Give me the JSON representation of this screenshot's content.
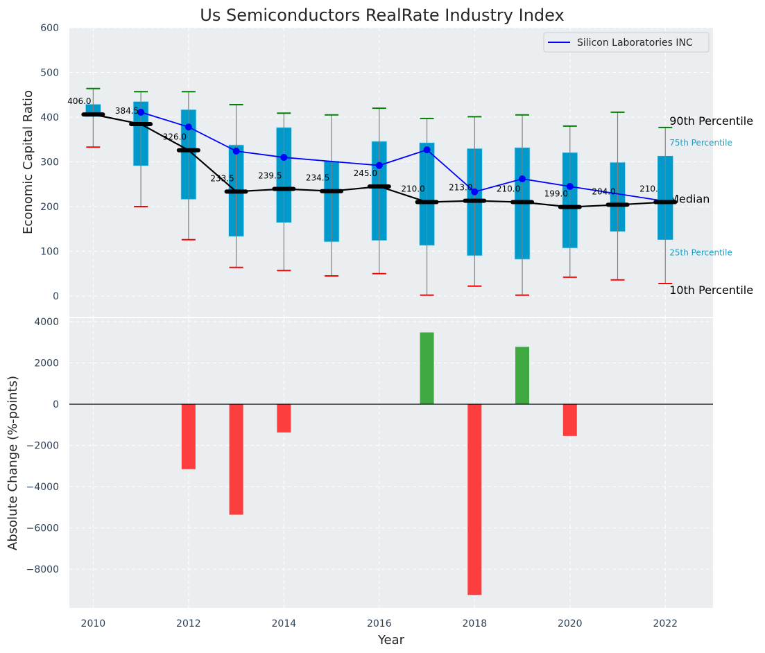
{
  "chart_data": [
    {
      "type": "box",
      "title": "Us Semiconductors RealRate Industry Index",
      "xlabel": "",
      "ylabel": "Economic Capital Ratio",
      "ylim": [
        0,
        600
      ],
      "yticks": [
        0,
        100,
        200,
        300,
        400,
        500,
        600
      ],
      "xlim": [
        2009.5,
        2023
      ],
      "grid": true,
      "legend": {
        "position": "top-right",
        "entries": [
          {
            "label": "Silicon Laboratories INC",
            "color": "#0000ff"
          }
        ]
      },
      "categories": [
        2010,
        2011,
        2012,
        2013,
        2014,
        2015,
        2016,
        2017,
        2018,
        2019,
        2020,
        2021,
        2022
      ],
      "p90": [
        464,
        457,
        457,
        428,
        409,
        405,
        420,
        397,
        401,
        405,
        380,
        411,
        377
      ],
      "p75": [
        429,
        435,
        417,
        338,
        377,
        302,
        346,
        343,
        330,
        332,
        321,
        299,
        313
      ],
      "median": [
        406.0,
        384.5,
        326.0,
        233.5,
        239.5,
        234.5,
        245.0,
        210.0,
        213.0,
        210.0,
        199.0,
        204.0,
        210.0
      ],
      "median_labels": [
        "406.0",
        "384.5",
        "326.0",
        "233.5",
        "239.5",
        "234.5",
        "245.0",
        "210.0",
        "213.0",
        "210.0",
        "199.0",
        "204.0",
        "210.0"
      ],
      "p25": [
        401,
        291,
        216,
        133,
        164,
        121,
        124,
        113,
        90,
        82,
        107,
        144,
        126
      ],
      "p10": [
        333,
        200,
        126,
        64,
        57,
        45,
        50,
        2,
        22,
        2,
        42,
        36,
        28
      ],
      "series": [
        {
          "name": "Silicon Laboratories INC",
          "x": [
            2011,
            2012,
            2013,
            2014,
            2016,
            2017,
            2018,
            2019,
            2020,
            2022
          ],
          "values": [
            411,
            378,
            324,
            310,
            292,
            327,
            233,
            262,
            245,
            212
          ],
          "markers": [
            true,
            true,
            true,
            true,
            true,
            true,
            true,
            true,
            true,
            false
          ],
          "color": "#0000ff"
        }
      ],
      "annotations": [
        {
          "text": "90th Percentile",
          "style": "big"
        },
        {
          "text": "75th Percentile",
          "style": "small"
        },
        {
          "text": "Median",
          "style": "big"
        },
        {
          "text": "25th Percentile",
          "style": "small"
        },
        {
          "text": "10th Percentile",
          "style": "big"
        }
      ],
      "colors": {
        "box": "#0099cc",
        "median": "#000000",
        "p90_cap": "#008000",
        "p10_cap": "#ff0000",
        "whisker": "#808080"
      }
    },
    {
      "type": "bar",
      "xlabel": "Year",
      "ylabel": "Absolute Change (%-points)",
      "ylim": [
        -9880,
        4170
      ],
      "yticks": [
        -8000,
        -6000,
        -4000,
        -2000,
        0,
        2000,
        4000
      ],
      "ytick_labels": [
        "−8000",
        "−6000",
        "−4000",
        "−2000",
        "0",
        "2000",
        "4000"
      ],
      "xticks": [
        2010,
        2012,
        2014,
        2016,
        2018,
        2020,
        2022
      ],
      "xtick_labels": [
        "2010",
        "2012",
        "2014",
        "2016",
        "2018",
        "2020",
        "2022"
      ],
      "grid": true,
      "categories": [
        2010,
        2011,
        2012,
        2013,
        2014,
        2015,
        2016,
        2017,
        2018,
        2019,
        2020,
        2021,
        2022
      ],
      "values": [
        0,
        0,
        -3150,
        -5360,
        -1370,
        0,
        0,
        3480,
        -9250,
        2780,
        -1540,
        0,
        0
      ],
      "colors": {
        "positive": "#2ca02c",
        "negative": "#ff2a2a"
      }
    }
  ]
}
